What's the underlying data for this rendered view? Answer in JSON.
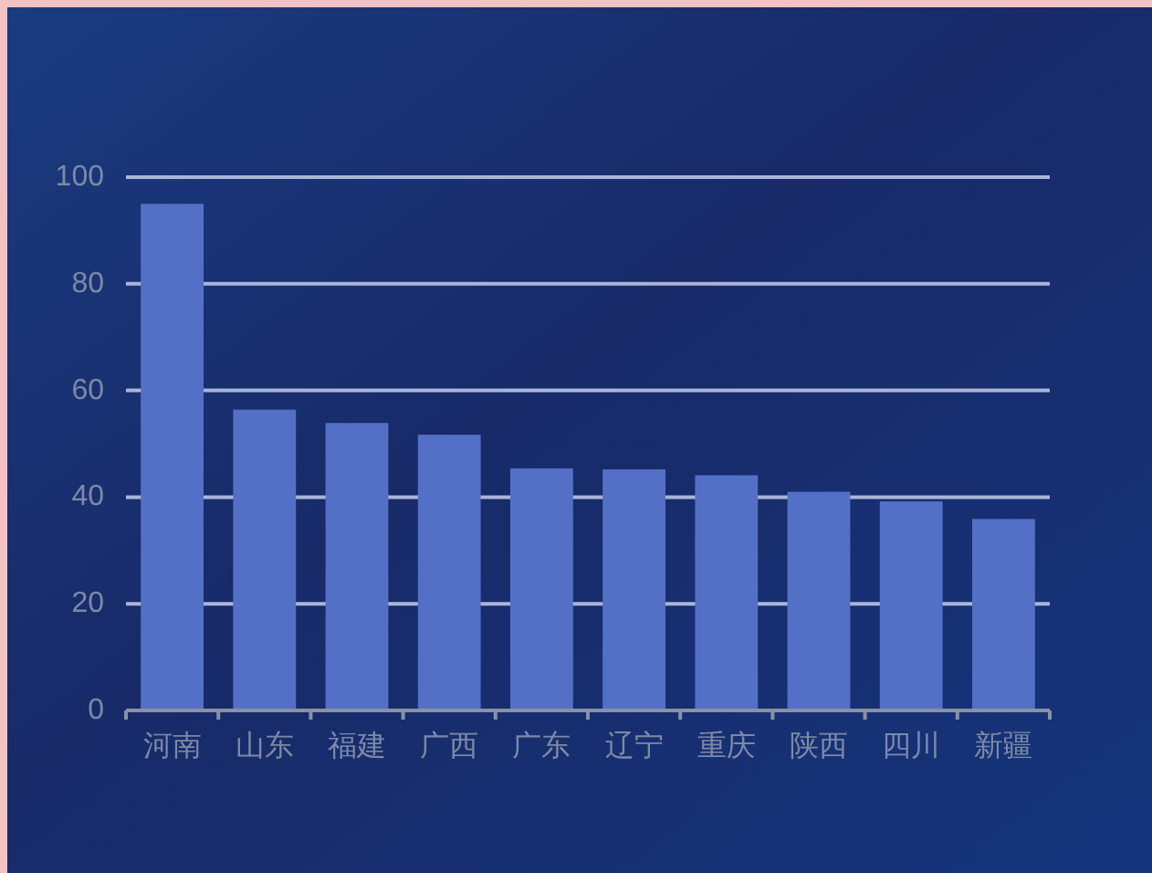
{
  "chart_data": {
    "type": "bar",
    "categories": [
      "河南",
      "山东",
      "福建",
      "广西",
      "广东",
      "辽宁",
      "重庆",
      "陕西",
      "四川",
      "新疆"
    ],
    "values": [
      95,
      56.4,
      53.9,
      51.7,
      45.4,
      45.2,
      44.1,
      41,
      39.2,
      35.9
    ],
    "color": "#5470c6",
    "ylim": [
      0,
      100
    ],
    "yticks": [
      0,
      20,
      40,
      60,
      80,
      100
    ],
    "grid": "y"
  }
}
